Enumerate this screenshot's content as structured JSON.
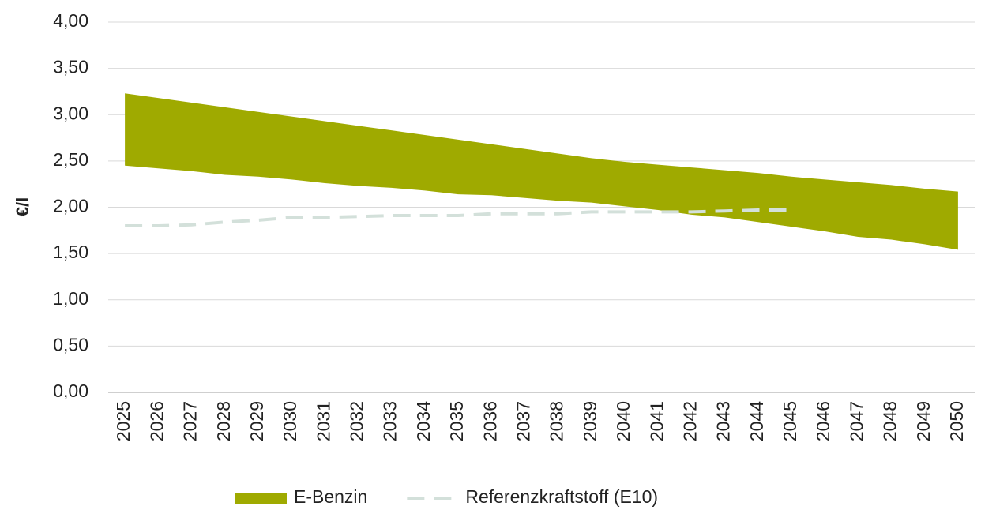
{
  "chart_data": {
    "type": "area",
    "y_label": "€/l",
    "categories": [
      "2025",
      "2026",
      "2027",
      "2028",
      "2029",
      "2030",
      "2031",
      "2032",
      "2033",
      "2034",
      "2035",
      "2036",
      "2037",
      "2038",
      "2039",
      "2040",
      "2041",
      "2042",
      "2043",
      "2044",
      "2045",
      "2046",
      "2047",
      "2048",
      "2049",
      "2050"
    ],
    "series": [
      {
        "name": "E-Benzin",
        "type": "range",
        "color": "#9faa00",
        "upper": [
          3.23,
          3.18,
          3.13,
          3.08,
          3.03,
          2.98,
          2.93,
          2.88,
          2.83,
          2.78,
          2.73,
          2.68,
          2.63,
          2.58,
          2.53,
          2.49,
          2.46,
          2.43,
          2.4,
          2.37,
          2.33,
          2.3,
          2.27,
          2.24,
          2.2,
          2.17
        ],
        "lower": [
          2.45,
          2.42,
          2.39,
          2.35,
          2.33,
          2.3,
          2.26,
          2.23,
          2.21,
          2.18,
          2.14,
          2.13,
          2.1,
          2.07,
          2.05,
          2.01,
          1.97,
          1.92,
          1.89,
          1.84,
          1.79,
          1.74,
          1.68,
          1.65,
          1.6,
          1.54
        ]
      },
      {
        "name": "Referenzkraftstoff (E10)",
        "type": "line",
        "dashed": true,
        "color": "#d3e0da",
        "values": [
          1.8,
          1.8,
          1.81,
          1.84,
          1.86,
          1.89,
          1.89,
          1.9,
          1.91,
          1.91,
          1.91,
          1.93,
          1.93,
          1.93,
          1.95,
          1.95,
          1.95,
          1.95,
          1.96,
          1.97,
          1.97,
          null,
          null,
          null,
          null,
          null
        ]
      }
    ],
    "ylim": [
      0,
      4
    ],
    "yticks": [
      {
        "value": 0,
        "label": "0,00"
      },
      {
        "value": 0.5,
        "label": "0,50"
      },
      {
        "value": 1,
        "label": "1,00"
      },
      {
        "value": 1.5,
        "label": "1,50"
      },
      {
        "value": 2,
        "label": "2,00"
      },
      {
        "value": 2.5,
        "label": "2,50"
      },
      {
        "value": 3,
        "label": "3,00"
      },
      {
        "value": 3.5,
        "label": "3,50"
      },
      {
        "value": 4,
        "label": "4,00"
      }
    ],
    "grid": true,
    "legend": "bottom"
  }
}
